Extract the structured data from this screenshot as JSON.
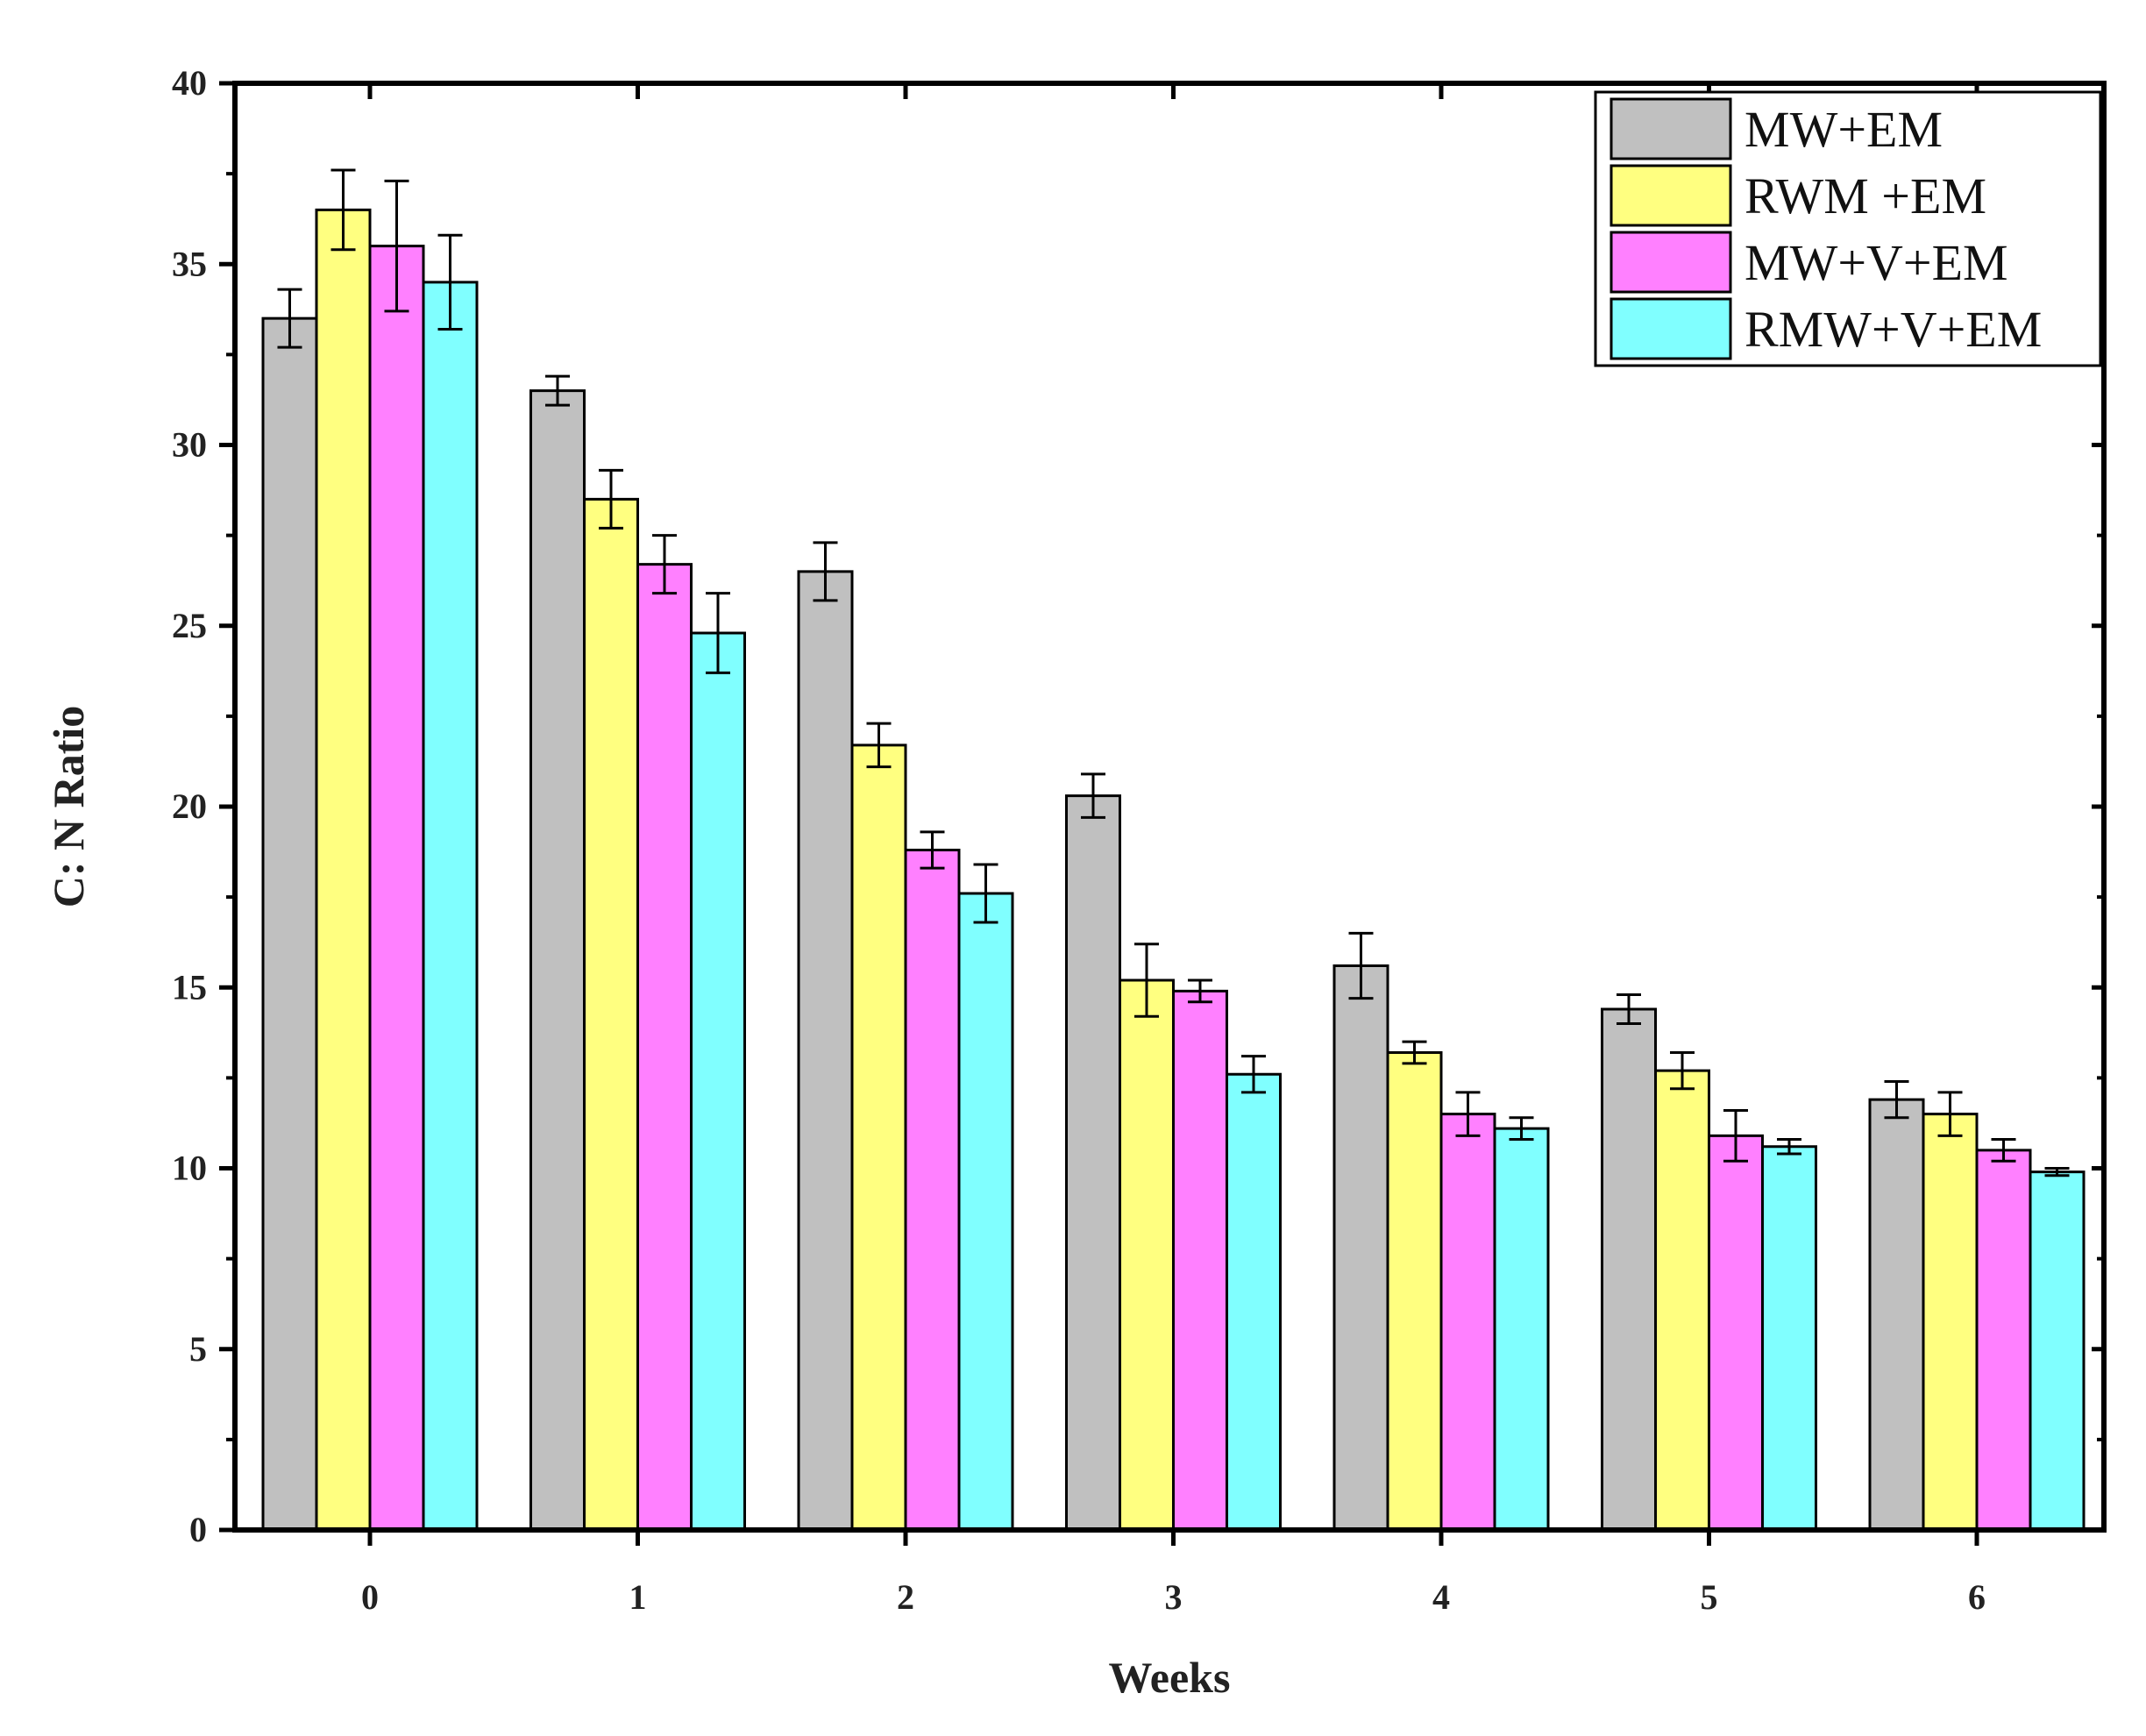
{
  "chart_data": {
    "type": "bar",
    "title": "",
    "xlabel": "Weeks",
    "ylabel": "C: N Ratio",
    "ylim": [
      0,
      40
    ],
    "yticks": [
      0,
      5,
      10,
      15,
      20,
      25,
      30,
      35,
      40
    ],
    "categories": [
      "0",
      "1",
      "2",
      "3",
      "4",
      "5",
      "6"
    ],
    "grid": false,
    "legend_position": "top-right",
    "series": [
      {
        "name": "MW+EM",
        "color": "#c0c0c0",
        "values": [
          33.5,
          31.5,
          26.5,
          20.3,
          15.6,
          14.4,
          11.9
        ],
        "errors": [
          0.8,
          0.4,
          0.8,
          0.6,
          0.9,
          0.4,
          0.5
        ]
      },
      {
        "name": "RWM +EM",
        "color": "#ffff80",
        "values": [
          36.5,
          28.5,
          21.7,
          15.2,
          13.2,
          12.7,
          11.5
        ],
        "errors": [
          1.1,
          0.8,
          0.6,
          1.0,
          0.3,
          0.5,
          0.6
        ]
      },
      {
        "name": "MW+V+EM",
        "color": "#ff80ff",
        "values": [
          35.5,
          26.7,
          18.8,
          14.9,
          11.5,
          10.9,
          10.5
        ],
        "errors": [
          1.8,
          0.8,
          0.5,
          0.3,
          0.6,
          0.7,
          0.3
        ]
      },
      {
        "name": "RMW+V+EM",
        "color": "#80ffff",
        "values": [
          34.5,
          24.8,
          17.6,
          12.6,
          11.1,
          10.6,
          9.9
        ],
        "errors": [
          1.3,
          1.1,
          0.8,
          0.5,
          0.3,
          0.2,
          0.1
        ]
      }
    ]
  }
}
